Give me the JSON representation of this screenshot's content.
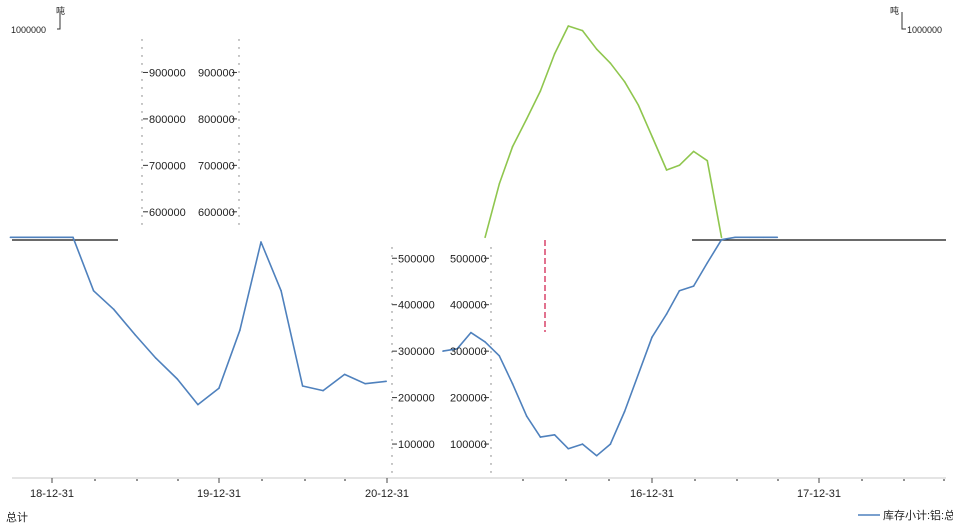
{
  "chart_data": [
    {
      "type": "line",
      "title": "",
      "xlabel": "",
      "ylabel": "",
      "left_unit": "吨",
      "right_unit": "吨",
      "left_axis_top_label": "1000000",
      "right_axis_top_label": "1000000",
      "footer_left": "总计",
      "x_tick_labels": [
        "18-12-31",
        "19-12-31",
        "20-12-31",
        "16-12-31",
        "17-12-31"
      ],
      "y_tick_labels": [
        "100000",
        "200000",
        "300000",
        "400000",
        "500000",
        "600000",
        "700000",
        "800000",
        "900000"
      ],
      "ylim": [
        0,
        1000000
      ],
      "grid": false,
      "legend_position": "bottom-right",
      "series": [
        {
          "name": "库存小计:铝:总计",
          "color": "#4f81bd",
          "x": [
            "2018-10-01",
            "2018-12-31",
            "2019-02-15",
            "2019-04-01",
            "2019-05-15",
            "2019-07-01",
            "2019-08-15",
            "2019-10-01",
            "2019-11-15",
            "2019-12-31",
            "2020-02-15",
            "2020-04-01",
            "2020-05-15",
            "2020-07-01",
            "2020-08-15",
            "2020-10-01",
            "2020-11-15",
            "2020-12-31"
          ],
          "values": [
            545000,
            545000,
            545000,
            430000,
            390000,
            335000,
            285000,
            240000,
            185000,
            220000,
            345000,
            535000,
            430000,
            225000,
            215000,
            250000,
            230000,
            235000
          ]
        },
        {
          "name": "",
          "color": "#4f81bd",
          "x": [
            "2015-10-01",
            "2015-11-01",
            "2015-12-01",
            "2016-01-01",
            "2016-02-01",
            "2016-03-01",
            "2016-04-01",
            "2016-05-01",
            "2016-06-01",
            "2016-07-01",
            "2016-08-01",
            "2016-09-01",
            "2016-10-01",
            "2016-11-01",
            "2016-12-31",
            "2017-02-01",
            "2017-03-01",
            "2017-04-01",
            "2017-05-01",
            "2017-06-01",
            "2017-07-01",
            "2017-08-01",
            "2017-09-01",
            "2017-10-01"
          ],
          "values": [
            300000,
            305000,
            340000,
            320000,
            290000,
            230000,
            160000,
            115000,
            120000,
            90000,
            100000,
            75000,
            100000,
            170000,
            330000,
            380000,
            430000,
            440000,
            490000,
            540000,
            545000,
            545000,
            545000,
            545000
          ]
        },
        {
          "name": "",
          "color": "#8fc64e",
          "x": [
            "2016-01-01",
            "2016-02-01",
            "2016-03-01",
            "2016-04-01",
            "2016-05-01",
            "2016-06-01",
            "2016-07-01",
            "2016-08-01",
            "2016-09-01",
            "2016-10-01",
            "2016-11-01",
            "2016-12-01",
            "2017-01-01",
            "2017-02-01",
            "2017-03-01",
            "2017-04-01",
            "2017-05-01",
            "2017-06-01"
          ],
          "values": [
            545000,
            660000,
            740000,
            800000,
            860000,
            940000,
            1000000,
            990000,
            950000,
            920000,
            880000,
            830000,
            760000,
            690000,
            700000,
            730000,
            710000,
            545000
          ]
        }
      ]
    }
  ]
}
